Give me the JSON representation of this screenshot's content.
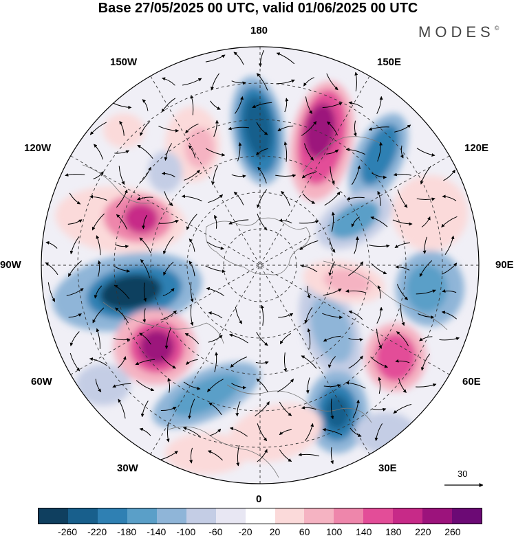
{
  "title": "Base 27/05/2025 00 UTC, valid 01/06/2025 00 UTC",
  "brand": "MODES",
  "brand_mark": "©",
  "meridian_labels": {
    "top": "180",
    "bottom": "0",
    "left": "90W",
    "right": "90E",
    "w150": "150W",
    "e150": "150E",
    "w120": "120W",
    "e120": "120E",
    "w60": "60W",
    "e60": "60E",
    "w30": "30W",
    "e30": "30E"
  },
  "reference_vector": "30",
  "colorbar": {
    "colors": [
      "#0f3f5f",
      "#185f8c",
      "#2f80b3",
      "#5a9fc8",
      "#8fb5d8",
      "#c4cde5",
      "#e8e7f3",
      "#ffffff",
      "#fbdada",
      "#f5b3c2",
      "#ee86ab",
      "#e34d98",
      "#c72a88",
      "#9c137c",
      "#6c0a75"
    ],
    "ticks": [
      "-260",
      "-220",
      "-180",
      "-140",
      "-100",
      "-60",
      "-20",
      "20",
      "60",
      "100",
      "140",
      "180",
      "220",
      "260"
    ]
  }
}
